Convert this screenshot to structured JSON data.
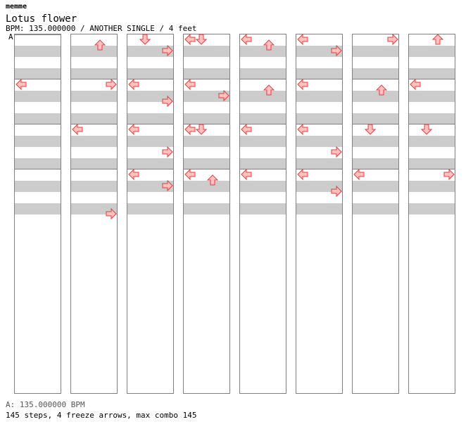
{
  "header": {
    "artist": "memme",
    "title": "Lotus flower",
    "info": "BPM: 135.000000 / ANOTHER SINGLE / 4 feet",
    "bpm_marker": "A"
  },
  "footer": {
    "bpm_line": "A: 135.000000 BPM",
    "stats": "145 steps, 4 freeze arrows, max combo 145"
  },
  "colors": {
    "note_fill": "#ffc0c0",
    "note_stroke": "#e04040",
    "freeze_fill": "#c0ffc0",
    "freeze_stroke": "#40a040",
    "shock_blue": "#66aaff",
    "shock_pink": "#ff99ee"
  },
  "chart": {
    "measures": 32,
    "columns": 8,
    "measures_per_column": 4,
    "notes": [
      {
        "m": 0,
        "r": 16,
        "d": "L"
      },
      {
        "m": 4,
        "r": 2,
        "d": "U"
      },
      {
        "m": 5,
        "r": 0,
        "d": "R"
      },
      {
        "m": 6,
        "r": 0,
        "d": "L"
      },
      {
        "m": 7,
        "r": 14,
        "d": "R"
      },
      {
        "m": 8,
        "r": 0,
        "d": "D"
      },
      {
        "m": 8,
        "r": 4,
        "d": "R"
      },
      {
        "m": 9,
        "r": 0,
        "d": "L"
      },
      {
        "m": 9,
        "r": 6,
        "d": "R"
      },
      {
        "m": 10,
        "r": 0,
        "d": "L"
      },
      {
        "m": 10,
        "r": 8,
        "d": "R"
      },
      {
        "m": 11,
        "r": 0,
        "d": "L"
      },
      {
        "m": 11,
        "r": 4,
        "d": "R"
      },
      {
        "m": 12,
        "r": 0,
        "d": "L"
      },
      {
        "m": 12,
        "r": 0,
        "d": "D"
      },
      {
        "m": 13,
        "r": 0,
        "d": "L"
      },
      {
        "m": 13,
        "r": 4,
        "d": "R"
      },
      {
        "m": 14,
        "r": 0,
        "d": "L"
      },
      {
        "m": 14,
        "r": 0,
        "d": "D"
      },
      {
        "m": 15,
        "r": 0,
        "d": "L"
      },
      {
        "m": 15,
        "r": 2,
        "d": "U"
      },
      {
        "m": 16,
        "r": 0,
        "d": "L"
      },
      {
        "m": 16,
        "r": 2,
        "d": "U"
      },
      {
        "m": 17,
        "r": 2,
        "d": "U"
      },
      {
        "m": 18,
        "r": 0,
        "d": "L"
      },
      {
        "m": 19,
        "r": 0,
        "d": "L"
      },
      {
        "m": 20,
        "r": 0,
        "d": "L"
      },
      {
        "m": 20,
        "r": 4,
        "d": "R"
      },
      {
        "m": 21,
        "r": 0,
        "d": "L"
      },
      {
        "m": 22,
        "r": 0,
        "d": "L"
      },
      {
        "m": 22,
        "r": 8,
        "d": "R"
      },
      {
        "m": 23,
        "r": 0,
        "d": "L"
      },
      {
        "m": 23,
        "r": 6,
        "d": "R"
      },
      {
        "m": 24,
        "r": 0,
        "d": "R"
      },
      {
        "m": 25,
        "r": 2,
        "d": "U"
      },
      {
        "m": 26,
        "r": 0,
        "d": "D"
      },
      {
        "m": 27,
        "r": 0,
        "d": "L"
      },
      {
        "m": 28,
        "r": 0,
        "d": "U"
      },
      {
        "m": 29,
        "r": 0,
        "d": "L"
      },
      {
        "m": 30,
        "r": 0,
        "d": "D"
      },
      {
        "m": 31,
        "r": 0,
        "d": "R"
      }
    ]
  }
}
